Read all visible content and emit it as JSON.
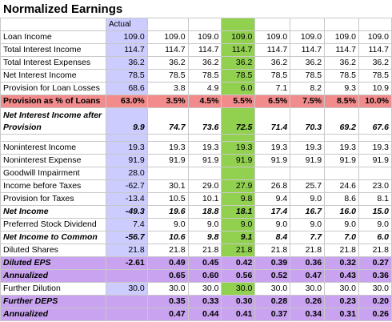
{
  "title": "Normalized Earnings",
  "header_actual": "Actual",
  "rows": [
    {
      "label": "Loan Income",
      "actual": "109.0",
      "vals": [
        "109.0",
        "109.0",
        "109.0",
        "109.0",
        "109.0",
        "109.0",
        "109.0"
      ]
    },
    {
      "label": "Total Interest Income",
      "actual": "114.7",
      "vals": [
        "114.7",
        "114.7",
        "114.7",
        "114.7",
        "114.7",
        "114.7",
        "114.7"
      ]
    },
    {
      "label": "Total Interest Expenses",
      "actual": "36.2",
      "vals": [
        "36.2",
        "36.2",
        "36.2",
        "36.2",
        "36.2",
        "36.2",
        "36.2"
      ]
    },
    {
      "label": "Net Interest Income",
      "actual": "78.5",
      "vals": [
        "78.5",
        "78.5",
        "78.5",
        "78.5",
        "78.5",
        "78.5",
        "78.5"
      ]
    },
    {
      "label": "Provision for Loan Losses",
      "actual": "68.6",
      "vals": [
        "3.8",
        "4.9",
        "6.0",
        "7.1",
        "8.2",
        "9.3",
        "10.9"
      ]
    },
    {
      "label": "Provision as % of Loans",
      "actual": "63.0%",
      "vals": [
        "3.5%",
        "4.5%",
        "5.5%",
        "6.5%",
        "7.5%",
        "8.5%",
        "10.0%"
      ]
    },
    {
      "label": "Net Interest Income after Provision",
      "actual": "9.9",
      "vals": [
        "74.7",
        "73.6",
        "72.5",
        "71.4",
        "70.3",
        "69.2",
        "67.6"
      ]
    },
    {
      "label": "Noninterest Income",
      "actual": "19.3",
      "vals": [
        "19.3",
        "19.3",
        "19.3",
        "19.3",
        "19.3",
        "19.3",
        "19.3"
      ]
    },
    {
      "label": "Noninterest Expense",
      "actual": "91.9",
      "vals": [
        "91.9",
        "91.9",
        "91.9",
        "91.9",
        "91.9",
        "91.9",
        "91.9"
      ]
    },
    {
      "label": "Goodwill Impairment",
      "actual": "28.0",
      "vals": [
        "",
        "",
        "",
        "",
        "",
        "",
        ""
      ]
    },
    {
      "label": "Income before Taxes",
      "actual": "-62.7",
      "vals": [
        "30.1",
        "29.0",
        "27.9",
        "26.8",
        "25.7",
        "24.6",
        "23.0"
      ]
    },
    {
      "label": "Provision for Taxes",
      "actual": "-13.4",
      "vals": [
        "10.5",
        "10.1",
        "9.8",
        "9.4",
        "9.0",
        "8.6",
        "8.1"
      ]
    },
    {
      "label": "Net Income",
      "actual": "-49.3",
      "vals": [
        "19.6",
        "18.8",
        "18.1",
        "17.4",
        "16.7",
        "16.0",
        "15.0"
      ]
    },
    {
      "label": "Preferred Stock Dividend",
      "actual": "7.4",
      "vals": [
        "9.0",
        "9.0",
        "9.0",
        "9.0",
        "9.0",
        "9.0",
        "9.0"
      ]
    },
    {
      "label": "Net Income to Common",
      "actual": "-56.7",
      "vals": [
        "10.6",
        "9.8",
        "9.1",
        "8.4",
        "7.7",
        "7.0",
        "6.0"
      ]
    },
    {
      "label": "Diluted Shares",
      "actual": "21.8",
      "vals": [
        "21.8",
        "21.8",
        "21.8",
        "21.8",
        "21.8",
        "21.8",
        "21.8"
      ]
    },
    {
      "label": "Diluted EPS",
      "actual": "-2.61",
      "vals": [
        "0.49",
        "0.45",
        "0.42",
        "0.39",
        "0.36",
        "0.32",
        "0.27"
      ]
    },
    {
      "label": "Annualized",
      "actual": "",
      "vals": [
        "0.65",
        "0.60",
        "0.56",
        "0.52",
        "0.47",
        "0.43",
        "0.36"
      ]
    },
    {
      "label": "Further Dilution",
      "actual": "30.0",
      "vals": [
        "30.0",
        "30.0",
        "30.0",
        "30.0",
        "30.0",
        "30.0",
        "30.0"
      ]
    },
    {
      "label": "Further DEPS",
      "actual": "",
      "vals": [
        "0.35",
        "0.33",
        "0.30",
        "0.28",
        "0.26",
        "0.23",
        "0.20"
      ]
    },
    {
      "label": "Annualized",
      "actual": "",
      "vals": [
        "0.47",
        "0.44",
        "0.41",
        "0.37",
        "0.34",
        "0.31",
        "0.26"
      ]
    }
  ]
}
